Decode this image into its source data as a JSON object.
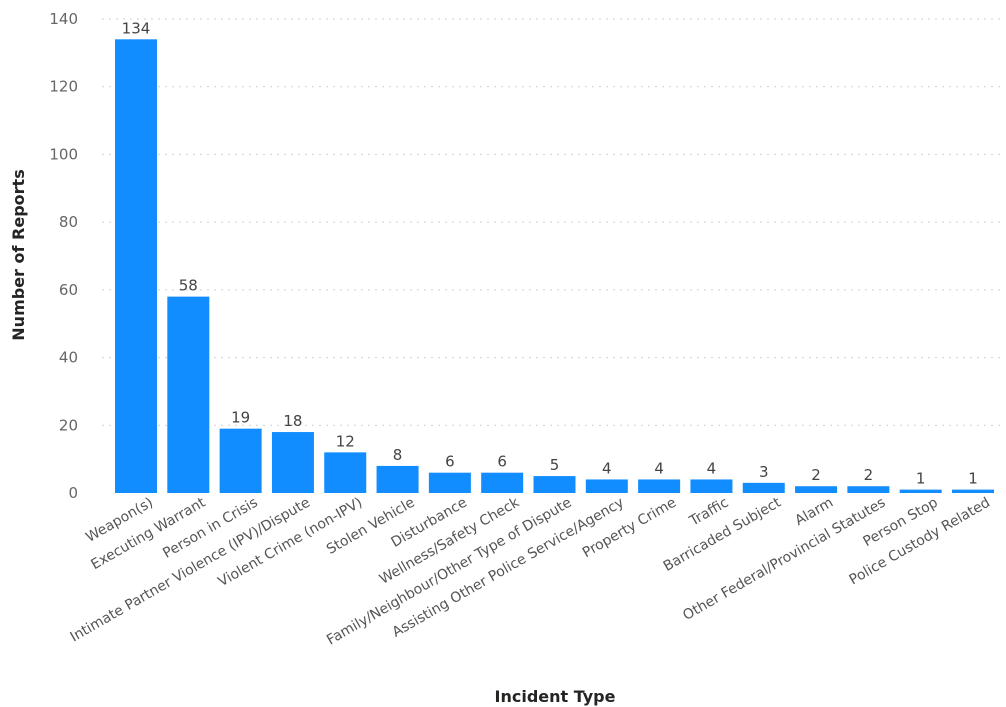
{
  "chart_data": {
    "type": "bar",
    "title": "",
    "xlabel": "Incident Type",
    "ylabel": "Number of Reports",
    "ylim": [
      0,
      140
    ],
    "yticks": [
      0,
      20,
      40,
      60,
      80,
      100,
      120,
      140
    ],
    "grid": true,
    "legend": "none",
    "bar_color": "#118DFF",
    "categories": [
      "Weapon(s)",
      "Executing Warrant",
      "Person in Crisis",
      "Intimate Partner Violence (IPV)/Dispute",
      "Violent Crime (non-IPV)",
      "Stolen Vehicle",
      "Disturbance",
      "Wellness/Safety Check",
      "Family/Neighbour/Other Type of Dispute",
      "Assisting Other Police Service/Agency",
      "Property Crime",
      "Traffic",
      "Barricaded Subject",
      "Alarm",
      "Other Federal/Provincial Statutes",
      "Person Stop",
      "Police Custody Related"
    ],
    "values": [
      134,
      58,
      19,
      18,
      12,
      8,
      6,
      6,
      5,
      4,
      4,
      4,
      3,
      2,
      2,
      1,
      1
    ]
  }
}
